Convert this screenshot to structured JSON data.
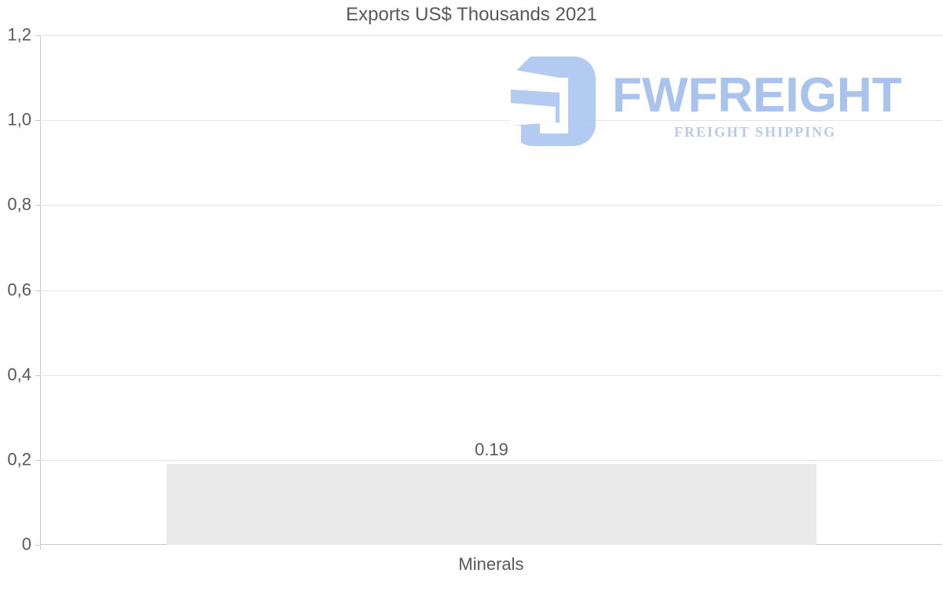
{
  "chart_data": {
    "type": "bar",
    "title": "Exports US$ Thousands 2021",
    "categories": [
      "Minerals"
    ],
    "values": [
      0.19
    ],
    "value_labels": [
      "0.19"
    ],
    "xlabel": "",
    "ylabel": "",
    "ylim": [
      0,
      1.2
    ],
    "grid": true,
    "legend": "none",
    "y_ticks": [
      {
        "value": 0,
        "label": "0"
      },
      {
        "value": 0.2,
        "label": "0,2"
      },
      {
        "value": 0.4,
        "label": "0,4"
      },
      {
        "value": 0.6,
        "label": "0,6"
      },
      {
        "value": 0.8,
        "label": "0,8"
      },
      {
        "value": 1.0,
        "label": "1,0"
      },
      {
        "value": 1.2,
        "label": "1,2"
      }
    ],
    "colors": {
      "bar_fill": "#e9e9e9",
      "grid_line": "#e4e4e4",
      "axis_line": "#c9c9c9",
      "text": "#595959"
    }
  },
  "watermark": {
    "wordmark": "FWFREIGHT",
    "tagline": "FREIGHT SHIPPING",
    "colors": {
      "icon": "#aec6f0",
      "wordmark": "#a3bfec",
      "tagline": "#b3c6e9"
    }
  }
}
